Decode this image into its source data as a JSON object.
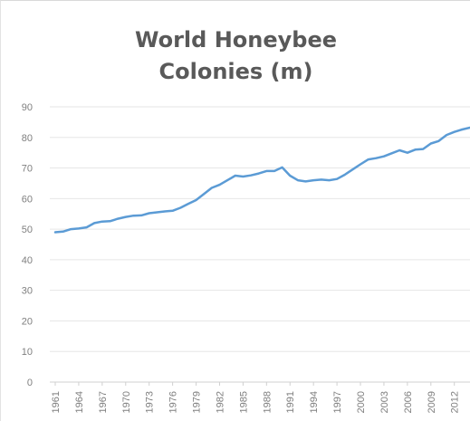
{
  "chart_data": {
    "type": "line",
    "title_lines": [
      "World Honeybee",
      "Colonies (m)"
    ],
    "xlabel": "",
    "ylabel": "",
    "ylim": [
      0,
      90
    ],
    "yticks": [
      0,
      10,
      20,
      30,
      40,
      50,
      60,
      70,
      80,
      90
    ],
    "xlim": [
      1961,
      2014
    ],
    "xtick_labels": [
      "1961",
      "1964",
      "1967",
      "1970",
      "1973",
      "1976",
      "1979",
      "1982",
      "1985",
      "1988",
      "1991",
      "1994",
      "1997",
      "2000",
      "2003",
      "2006",
      "2009",
      "2012"
    ],
    "grid": true,
    "legend": "none",
    "series": [
      {
        "color": "#5b9bd5",
        "x": [
          1961,
          1962,
          1963,
          1964,
          1965,
          1966,
          1967,
          1968,
          1969,
          1970,
          1971,
          1972,
          1973,
          1974,
          1975,
          1976,
          1977,
          1978,
          1979,
          1980,
          1981,
          1982,
          1983,
          1984,
          1985,
          1986,
          1987,
          1988,
          1989,
          1990,
          1991,
          1992,
          1993,
          1994,
          1995,
          1996,
          1997,
          1998,
          1999,
          2000,
          2001,
          2002,
          2003,
          2004,
          2005,
          2006,
          2007,
          2008,
          2009,
          2010,
          2011,
          2012,
          2013,
          2014
        ],
        "values": [
          49,
          49.2,
          50,
          50.2,
          50.6,
          52,
          52.5,
          52.6,
          53.4,
          54,
          54.4,
          54.5,
          55.2,
          55.5,
          55.8,
          56,
          57,
          58.3,
          59.5,
          61.5,
          63.5,
          64.5,
          66,
          67.5,
          67.2,
          67.6,
          68.2,
          69,
          69,
          70.2,
          67.5,
          66,
          65.6,
          66,
          66.2,
          66,
          66.4,
          67.8,
          69.5,
          71.2,
          72.8,
          73.2,
          73.8,
          74.8,
          75.8,
          75,
          76,
          76.2,
          78,
          78.8,
          80.8,
          81.8,
          82.6,
          83.2
        ]
      }
    ]
  }
}
